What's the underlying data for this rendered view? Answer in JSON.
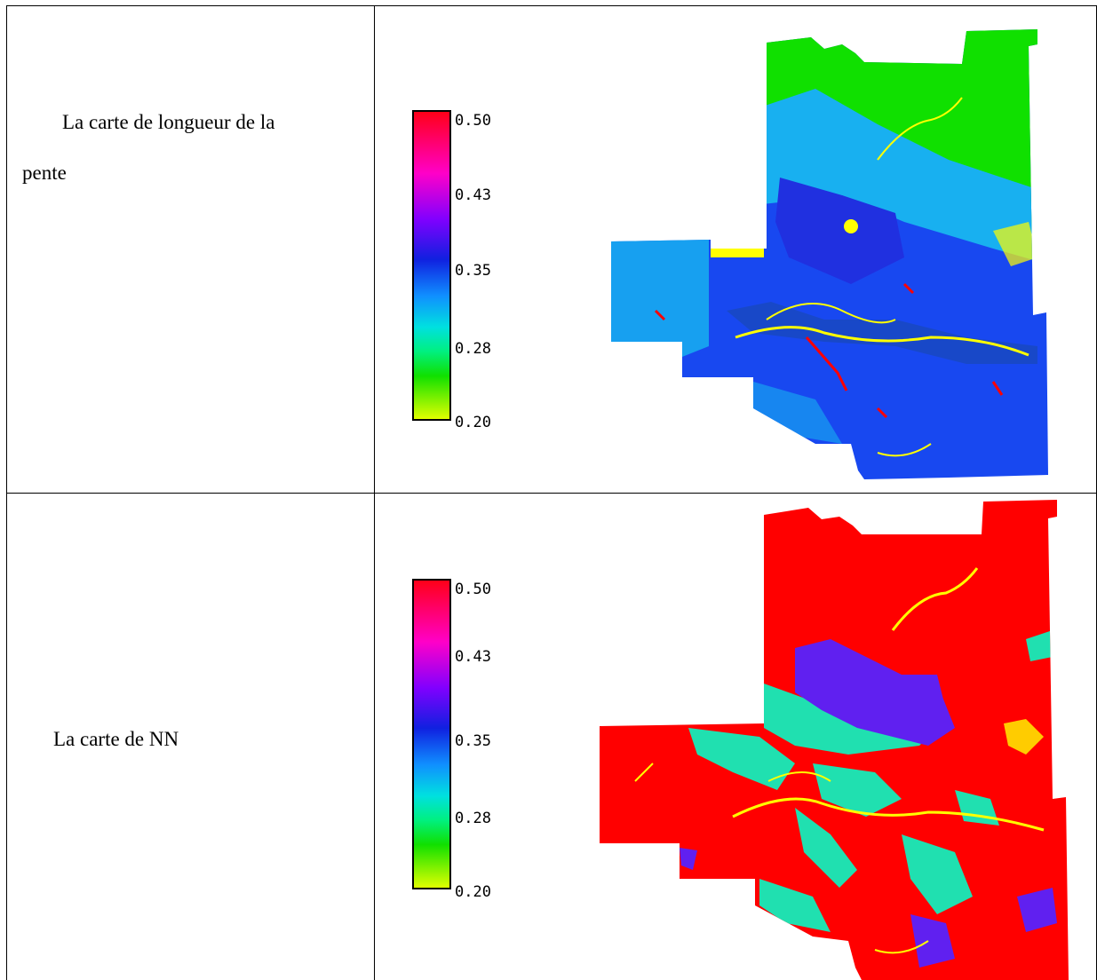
{
  "rows": [
    {
      "label_line1": "La carte de longueur de la",
      "label_line2": "pente",
      "legend_ticks": [
        "0.50",
        "0.43",
        "0.35",
        "0.28",
        "0.20"
      ]
    },
    {
      "label_line1": "La carte de NN",
      "legend_ticks": [
        "0.50",
        "0.43",
        "0.35",
        "0.28",
        "0.20"
      ]
    }
  ],
  "legend_colors": [
    "#ff0018",
    "#ff00c8",
    "#8000ff",
    "#1020e0",
    "#1090ff",
    "#00e0e0",
    "#10e000",
    "#e0ff00"
  ],
  "map_palette": {
    "green": "#10e000",
    "blue": "#1848f0",
    "cyan": "#18b0f0",
    "red": "#ff0000",
    "teal": "#20e0b0",
    "violet": "#6020f0",
    "yellow": "#ffff00"
  }
}
